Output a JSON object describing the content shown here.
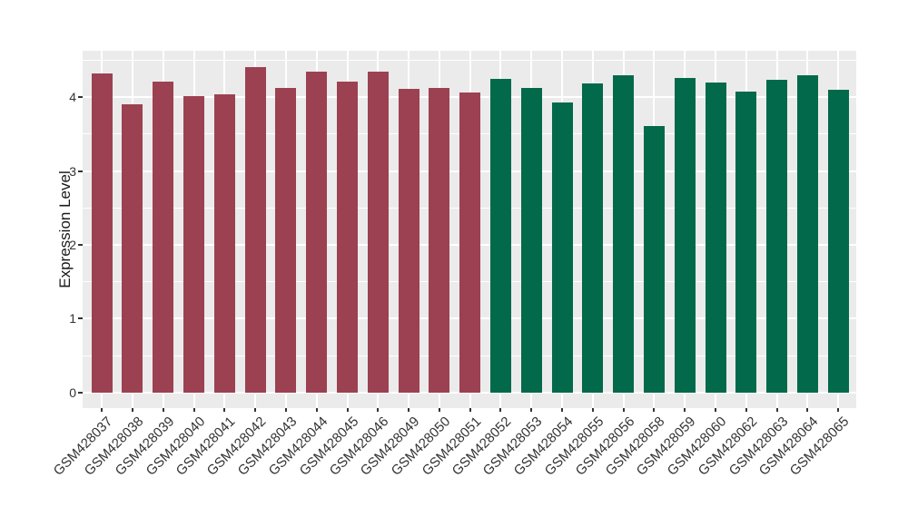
{
  "figure": {
    "background": "#FFFFFF",
    "panel_background": "#EBEBEB",
    "gridline_color": "#FFFFFF",
    "tick_color": "#333333",
    "axis_text_color": "#333333",
    "axis_title_color": "#1A1A1A"
  },
  "chart_data": {
    "type": "bar",
    "title": "",
    "xlabel": "",
    "ylabel": "Expression Level",
    "ylim": [
      0,
      4.64
    ],
    "yticks": [
      0,
      1,
      2,
      3,
      4
    ],
    "grid": "major-and-minor-white-on-gray",
    "legend_position": "none",
    "x_tick_rotation": 45,
    "group_colors": {
      "left_group": "#9C4151",
      "right_group": "#02694A"
    },
    "bars": [
      {
        "label": "GSM428037",
        "value": 4.32,
        "color": "#9C4151"
      },
      {
        "label": "GSM428038",
        "value": 3.9,
        "color": "#9C4151"
      },
      {
        "label": "GSM428039",
        "value": 4.21,
        "color": "#9C4151"
      },
      {
        "label": "GSM428040",
        "value": 4.01,
        "color": "#9C4151"
      },
      {
        "label": "GSM428041",
        "value": 4.04,
        "color": "#9C4151"
      },
      {
        "label": "GSM428042",
        "value": 4.41,
        "color": "#9C4151"
      },
      {
        "label": "GSM428043",
        "value": 4.13,
        "color": "#9C4151"
      },
      {
        "label": "GSM428044",
        "value": 4.34,
        "color": "#9C4151"
      },
      {
        "label": "GSM428045",
        "value": 4.21,
        "color": "#9C4151"
      },
      {
        "label": "GSM428046",
        "value": 4.34,
        "color": "#9C4151"
      },
      {
        "label": "GSM428049",
        "value": 4.11,
        "color": "#9C4151"
      },
      {
        "label": "GSM428050",
        "value": 4.12,
        "color": "#9C4151"
      },
      {
        "label": "GSM428051",
        "value": 4.06,
        "color": "#9C4151"
      },
      {
        "label": "GSM428052",
        "value": 4.25,
        "color": "#02694A"
      },
      {
        "label": "GSM428053",
        "value": 4.12,
        "color": "#02694A"
      },
      {
        "label": "GSM428054",
        "value": 3.93,
        "color": "#02694A"
      },
      {
        "label": "GSM428055",
        "value": 4.18,
        "color": "#02694A"
      },
      {
        "label": "GSM428056",
        "value": 4.3,
        "color": "#02694A"
      },
      {
        "label": "GSM428058",
        "value": 3.61,
        "color": "#02694A"
      },
      {
        "label": "GSM428059",
        "value": 4.26,
        "color": "#02694A"
      },
      {
        "label": "GSM428060",
        "value": 4.2,
        "color": "#02694A"
      },
      {
        "label": "GSM428062",
        "value": 4.07,
        "color": "#02694A"
      },
      {
        "label": "GSM428063",
        "value": 4.23,
        "color": "#02694A"
      },
      {
        "label": "GSM428064",
        "value": 4.3,
        "color": "#02694A"
      },
      {
        "label": "GSM428065",
        "value": 4.1,
        "color": "#02694A"
      }
    ]
  }
}
